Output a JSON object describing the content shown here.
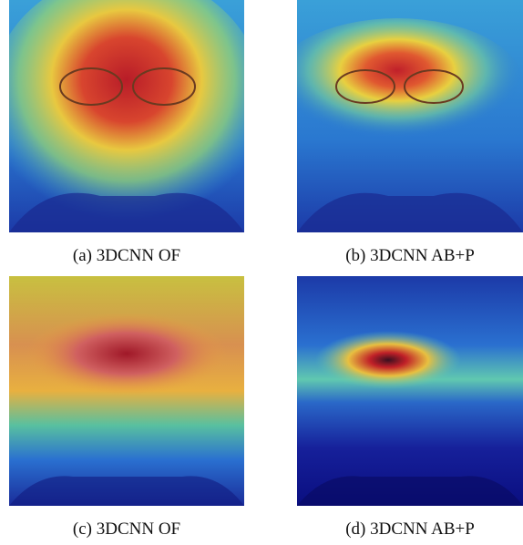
{
  "subfigures": [
    {
      "caption": "(a) 3DCNN OF"
    },
    {
      "caption": "(b) 3DCNN AB+P"
    },
    {
      "caption": "(c) 3DCNN OF"
    },
    {
      "caption": "(d) 3DCNN AB+P"
    }
  ]
}
